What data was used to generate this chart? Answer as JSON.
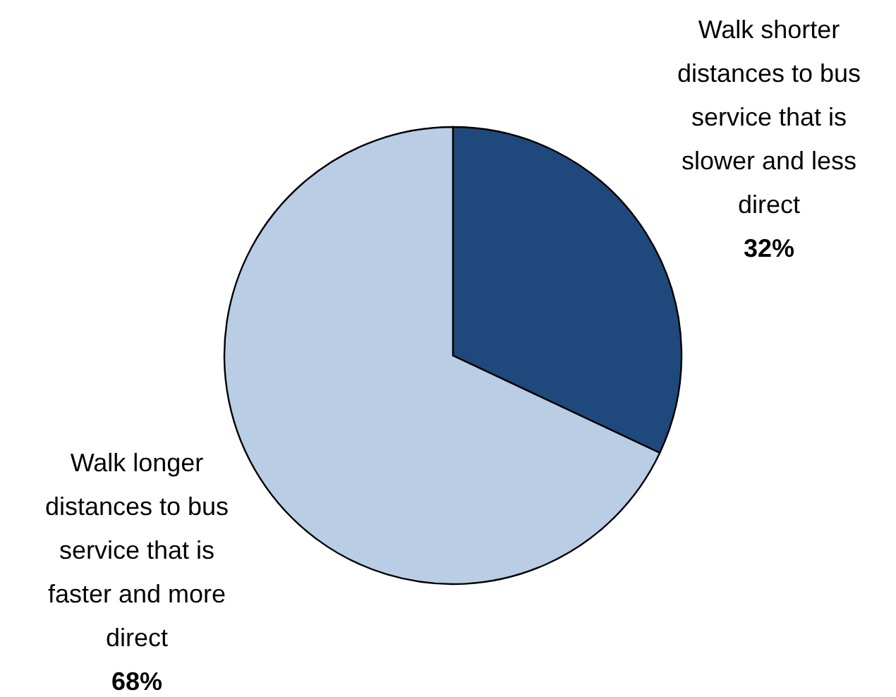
{
  "chart_data": {
    "type": "pie",
    "categories": [
      "Walk shorter distances to bus service that is slower and less direct",
      "Walk longer distances to bus service that is faster and more direct"
    ],
    "values": [
      32,
      68
    ],
    "colors": [
      "#1f497d",
      "#b9cde5"
    ],
    "value_labels": [
      "32%",
      "68%"
    ]
  }
}
